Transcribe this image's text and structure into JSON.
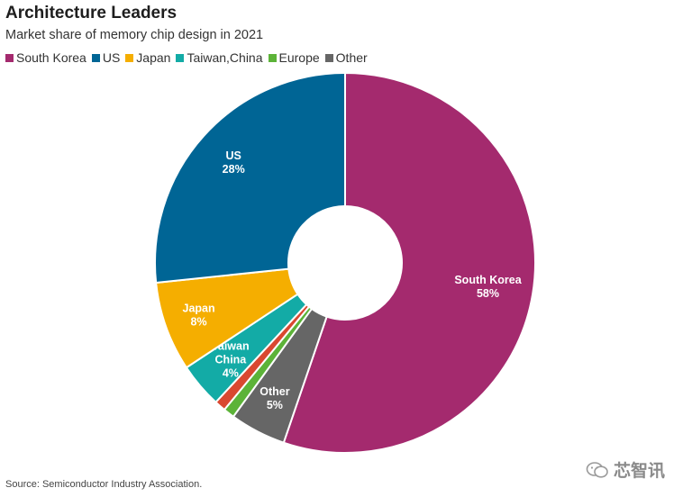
{
  "chart_data": {
    "type": "pie",
    "title": "Architecture Leaders",
    "subtitle": "Market share of memory chip design in 2021",
    "legend_position": "top",
    "legend": [
      "South Korea",
      "US",
      "Japan",
      "Taiwan,China",
      "Europe",
      "Other"
    ],
    "slices": [
      {
        "name": "South Korea",
        "value": 58,
        "display": "58%",
        "label_lines": [
          "South Korea",
          "58%"
        ],
        "color": "#a42a6e"
      },
      {
        "name": "Other",
        "value": 5,
        "display": "5%",
        "label_lines": [
          "Other",
          "5%"
        ],
        "color": "#666666"
      },
      {
        "name": "Europe",
        "value": 1,
        "display": "",
        "label_lines": [],
        "color": "#5cb338"
      },
      {
        "name": "Unlabeled",
        "value": 1,
        "display": "",
        "label_lines": [],
        "color": "#d94830"
      },
      {
        "name": "Taiwan,China",
        "value": 4,
        "display": "4%",
        "label_lines": [
          "Taiwan",
          "China",
          "4%"
        ],
        "color": "#13aba6"
      },
      {
        "name": "Japan",
        "value": 8,
        "display": "8%",
        "label_lines": [
          "Japan",
          "8%"
        ],
        "color": "#f5ae00"
      },
      {
        "name": "US",
        "value": 28,
        "display": "28%",
        "label_lines": [
          "US",
          "28%"
        ],
        "color": "#006595"
      }
    ]
  },
  "source": "Source: Semiconductor Industry Association.",
  "watermark": "芯智讯"
}
